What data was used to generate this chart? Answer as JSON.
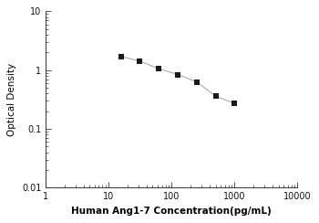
{
  "x": [
    15.625,
    31.25,
    62.5,
    125,
    250,
    500,
    1000
  ],
  "y": [
    1.7,
    1.42,
    1.05,
    0.84,
    0.63,
    0.36,
    0.27
  ],
  "line_color": "#aaaaaa",
  "marker_color": "#1a1a1a",
  "marker": "s",
  "marker_size": 4,
  "line_width": 0.8,
  "xlabel": "Human Ang1-7 Concentration(pg/mL)",
  "ylabel": "Optical Density",
  "xlim": [
    1,
    10000
  ],
  "ylim": [
    0.01,
    10
  ],
  "xlabel_fontsize": 7.5,
  "ylabel_fontsize": 7.5,
  "tick_fontsize": 7,
  "background_color": "#ffffff",
  "spine_color": "#333333",
  "xlabel_bold": true,
  "ylabel_bold": false
}
